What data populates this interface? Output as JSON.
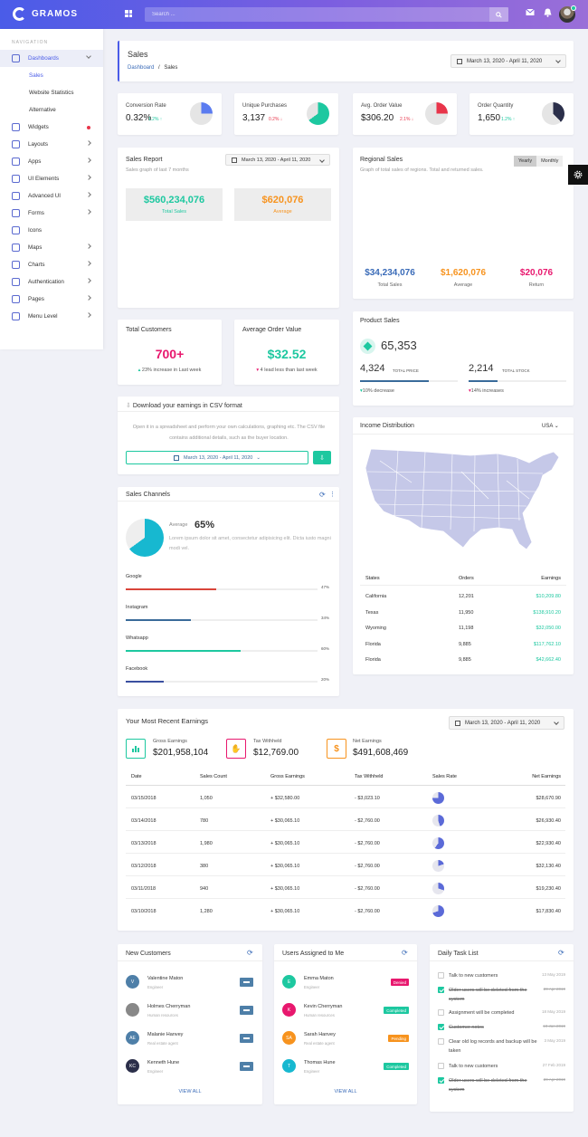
{
  "app": {
    "name": "GRAMOS"
  },
  "search": {
    "placeholder": "Search ..."
  },
  "sidebar": {
    "heading": "NAVIGATION",
    "items": [
      {
        "label": "Dashboards"
      },
      {
        "label": "Sales"
      },
      {
        "label": "Website Statistics"
      },
      {
        "label": "Alternative"
      },
      {
        "label": "Widgets"
      },
      {
        "label": "Layouts"
      },
      {
        "label": "Apps"
      },
      {
        "label": "UI Elements"
      },
      {
        "label": "Advanced UI"
      },
      {
        "label": "Forms"
      },
      {
        "label": "Icons"
      },
      {
        "label": "Maps"
      },
      {
        "label": "Charts"
      },
      {
        "label": "Authentication"
      },
      {
        "label": "Pages"
      },
      {
        "label": "Menu Level"
      }
    ]
  },
  "header": {
    "title": "Sales",
    "crumb1": "Dashboard",
    "sep": "/",
    "crumb2": "Sales",
    "date": "March 13, 2020 - April 11, 2020"
  },
  "stats": [
    {
      "label": "Conversion Rate",
      "value": "0.32%",
      "change": "1.2%",
      "dir": "up",
      "color": "#5b7cf0",
      "pct": 0.25
    },
    {
      "label": "Unique Purchases",
      "value": "3,137",
      "change": "0.2%",
      "dir": "down",
      "color": "#1dc8a0",
      "pct": 0.65
    },
    {
      "label": "Avg. Order Value",
      "value": "$306.20",
      "change": "2.1%",
      "dir": "down",
      "color": "#e8354a",
      "pct": 0.25
    },
    {
      "label": "Order Quantity",
      "value": "1,650",
      "change": "1.2%",
      "dir": "up",
      "color": "#2b2f4a",
      "pct": 0.38
    }
  ],
  "sales_report": {
    "title": "Sales Report",
    "subtitle": "Sales graph of last 7 months",
    "date": "March 13, 2020 - April 11, 2020",
    "total_value": "$560,234,076",
    "total_label": "Total Sales",
    "avg_value": "$620,076",
    "avg_label": "Average"
  },
  "regional": {
    "title": "Regional Sales",
    "subtitle": "Graph of total sales of regions. Total and returned sales.",
    "tab_yearly": "Yearly",
    "tab_monthly": "Monthly",
    "total_value": "$34,234,076",
    "total_label": "Total Sales",
    "avg_value": "$1,620,076",
    "avg_label": "Average",
    "ret_value": "$20,076",
    "ret_label": "Return"
  },
  "customers": {
    "title": "Total Customers",
    "value": "700+",
    "note": "23% increase in Last week"
  },
  "avg_order": {
    "title": "Average Order Value",
    "value": "$32.52",
    "note": "4 lead less than last week"
  },
  "product_sales": {
    "title": "Product Sales",
    "value": "65,353",
    "price_value": "4,324",
    "price_label": "TOTAL PRICE",
    "price_note": "10% decrease",
    "stock_value": "2,214",
    "stock_label": "TOTAL STOCK",
    "stock_note": "14% increases",
    "price_pct": 0.7,
    "stock_pct": 0.3
  },
  "download": {
    "title": "Download your earnings in CSV format",
    "text": "Open it in a spreadsheet and perform your own calculations, graphing etc. The CSV file contains additional details, such as the buyer location.",
    "date": "March 13, 2020 - April 11, 2020"
  },
  "channels": {
    "title": "Sales Channels",
    "avg_label": "Average",
    "avg_value": "65%",
    "avg_text": "Lorem ipsum dolor sit amet, consectetur adipisicing elit. Dicta iusto magni modi vel.",
    "items": [
      {
        "name": "Google",
        "pct": "47%",
        "color": "#d9453a",
        "value": 0.47
      },
      {
        "name": "Instagram",
        "pct": "34%",
        "color": "#3a6b9a",
        "value": 0.34
      },
      {
        "name": "Whatsapp",
        "pct": "60%",
        "color": "#1dc8a0",
        "value": 0.6
      },
      {
        "name": "Facebook",
        "pct": "20%",
        "color": "#3a4fa0",
        "value": 0.2
      }
    ]
  },
  "income": {
    "title": "Income Distribution",
    "country": "USA",
    "headers": [
      "States",
      "Orders",
      "Earnings"
    ],
    "rows": [
      [
        "California",
        "12,201",
        "$10,209.80"
      ],
      [
        "Texas",
        "11,950",
        "$138,910.20"
      ],
      [
        "Wyoming",
        "11,198",
        "$32,050.00"
      ],
      [
        "Florida",
        "9,885",
        "$117,762.10"
      ],
      [
        "Florida",
        "9,885",
        "$42,662.40"
      ]
    ]
  },
  "earnings": {
    "title": "Your Most Recent Earnings",
    "date": "March 13, 2020 - April 11, 2020",
    "gross_label": "Gross Earnings",
    "gross_value": "$201,958,104",
    "tax_label": "Tax Withheld",
    "tax_value": "$12,769.00",
    "net_label": "Net Earnings",
    "net_value": "$491,608,469",
    "headers": [
      "Date",
      "Sales Count",
      "Gross Earnings",
      "Tax Withheld",
      "Sales Rate",
      "Net Earnings"
    ],
    "rows": [
      {
        "date": "03/15/2018",
        "count": "1,050",
        "gross": "+ $32,580.00",
        "tax": "- $3,023.10",
        "rate": 0.75,
        "net": "$28,670.90"
      },
      {
        "date": "03/14/2018",
        "count": "780",
        "gross": "+ $30,065.10",
        "tax": "- $2,760.00",
        "rate": 0.45,
        "net": "$26,930.40"
      },
      {
        "date": "03/13/2018",
        "count": "1,980",
        "gross": "+ $30,065.10",
        "tax": "- $2,760.00",
        "rate": 0.6,
        "net": "$22,930.40"
      },
      {
        "date": "03/12/2018",
        "count": "380",
        "gross": "+ $30,065.10",
        "tax": "- $2,760.00",
        "rate": 0.2,
        "net": "$32,130.40"
      },
      {
        "date": "03/11/2018",
        "count": "940",
        "gross": "+ $30,065.10",
        "tax": "- $2,760.00",
        "rate": 0.3,
        "net": "$19,230.40"
      },
      {
        "date": "03/10/2018",
        "count": "1,280",
        "gross": "+ $30,065.10",
        "tax": "- $2,760.00",
        "rate": 0.7,
        "net": "$17,830.40"
      }
    ]
  },
  "new_customers": {
    "title": "New Customers",
    "view_all": "VIEW ALL",
    "items": [
      {
        "name": "Valentine Maton",
        "role": "Engineer",
        "initials": "V",
        "color": "#4e7fa8"
      },
      {
        "name": "Holmes Cherryman",
        "role": "Human resources",
        "initials": "",
        "color": "#888"
      },
      {
        "name": "Malanie Hanvey",
        "role": "Real estate agent",
        "initials": "AE",
        "color": "#4e7fa8"
      },
      {
        "name": "Kenneth Hune",
        "role": "Engineer",
        "initials": "KC",
        "color": "#2b2f4a"
      }
    ]
  },
  "users_assigned": {
    "title": "Users Assigned to Me",
    "view_all": "VIEW ALL",
    "items": [
      {
        "name": "Emma Maton",
        "role": "Engineer",
        "initials": "E",
        "color": "#1dc8a0",
        "status": "Denied",
        "status_color": "#e8186e"
      },
      {
        "name": "Kevin Cherryman",
        "role": "Human resources",
        "initials": "K",
        "color": "#e8186e",
        "status": "Completed",
        "status_color": "#1dc8a0"
      },
      {
        "name": "Sarah Hanvey",
        "role": "Real estate agent",
        "initials": "SA",
        "color": "#f7931e",
        "status": "Pending",
        "status_color": "#f7931e"
      },
      {
        "name": "Thomas Hune",
        "role": "Engineer",
        "initials": "T",
        "color": "#17b8d0",
        "status": "Completed",
        "status_color": "#1dc8a0"
      }
    ]
  },
  "tasks": {
    "title": "Daily Task List",
    "items": [
      {
        "text": "Talk to new customers",
        "date": "13 May 2019",
        "done": false
      },
      {
        "text": "Older users will be deleted from the system",
        "date": "20 Apr 2019",
        "done": true
      },
      {
        "text": "Assignment will be completed",
        "date": "18 May 2019",
        "done": false
      },
      {
        "text": "Customer notes",
        "date": "10 Jan 2019",
        "done": true
      },
      {
        "text": "Clear old log records and backup will be taken",
        "date": "3 May 2019",
        "done": false
      },
      {
        "text": "Talk to new customers",
        "date": "27 Feb 2019",
        "done": false
      },
      {
        "text": "Older users will be deleted from the system",
        "date": "20 Apr 2019",
        "done": true
      }
    ]
  }
}
